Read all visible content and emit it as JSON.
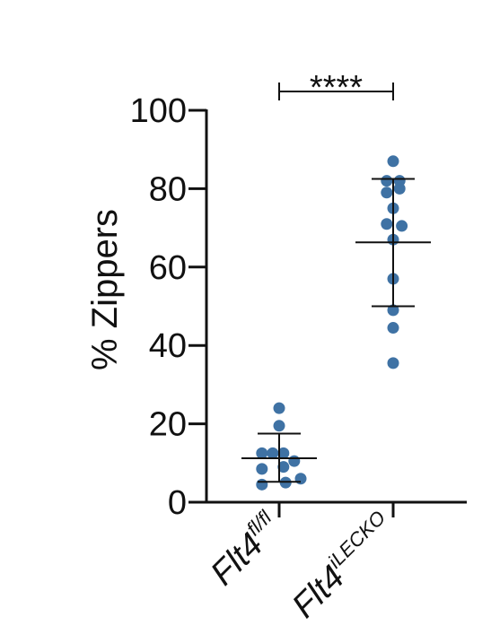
{
  "chart_data": {
    "type": "scatter",
    "ylabel": "% Zippers",
    "ylim": [
      0,
      100
    ],
    "yticks": [
      0,
      20,
      40,
      60,
      80,
      100
    ],
    "categories": [
      {
        "base": "Flt4",
        "sup": "fl/fl"
      },
      {
        "base": "Flt4",
        "sup": "iLECKO"
      }
    ],
    "series": [
      {
        "category_index": 0,
        "points": [
          {
            "offset": 0,
            "y": 24
          },
          {
            "offset": 0,
            "y": 19.5
          },
          {
            "offset": -0.8,
            "y": 12.5
          },
          {
            "offset": -0.3,
            "y": 12.5
          },
          {
            "offset": 0.2,
            "y": 12.5
          },
          {
            "offset": 0.7,
            "y": 10.5
          },
          {
            "offset": -0.8,
            "y": 8.5
          },
          {
            "offset": 0.2,
            "y": 9
          },
          {
            "offset": 1.0,
            "y": 6
          },
          {
            "offset": -0.8,
            "y": 4.5
          },
          {
            "offset": 0.3,
            "y": 5
          }
        ],
        "mean": 11.2,
        "sd_low": 5.2,
        "sd_high": 17.5
      },
      {
        "category_index": 1,
        "points": [
          {
            "offset": 0,
            "y": 87
          },
          {
            "offset": -0.3,
            "y": 82
          },
          {
            "offset": 0.3,
            "y": 82
          },
          {
            "offset": -0.3,
            "y": 79
          },
          {
            "offset": 0.3,
            "y": 80
          },
          {
            "offset": 0,
            "y": 75
          },
          {
            "offset": -0.3,
            "y": 71
          },
          {
            "offset": 0.4,
            "y": 70.5
          },
          {
            "offset": 0,
            "y": 67
          },
          {
            "offset": 0,
            "y": 57
          },
          {
            "offset": 0,
            "y": 49
          },
          {
            "offset": 0,
            "y": 44.5
          },
          {
            "offset": 0,
            "y": 35.5
          }
        ],
        "mean": 66.3,
        "sd_low": 50,
        "sd_high": 82.5
      }
    ],
    "significance": {
      "between": [
        0,
        1
      ],
      "label": "****"
    },
    "marker_color": "#3f72a4",
    "line_color": "#111111"
  }
}
